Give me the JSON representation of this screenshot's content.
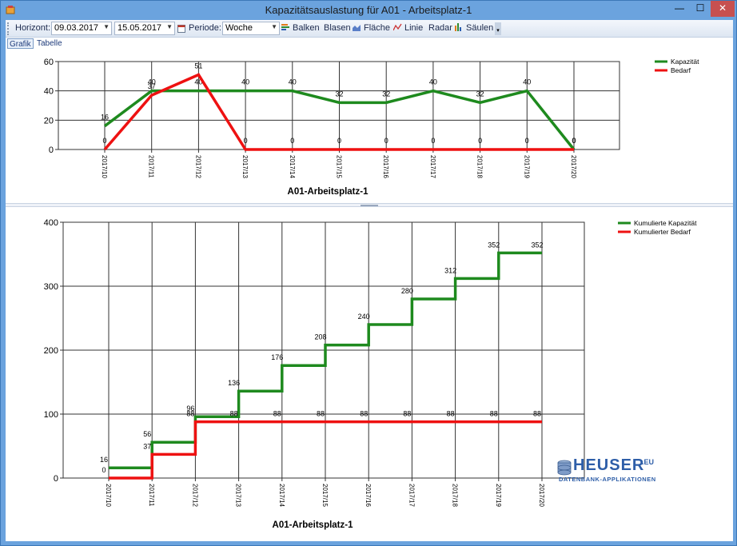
{
  "window": {
    "title": "Kapazitätsauslastung für A01 - Arbeitsplatz-1",
    "minimize": "—",
    "maximize": "☐",
    "close": "✕"
  },
  "toolbar": {
    "horizont_label": "Horizont:",
    "date_from": "09.03.2017",
    "date_to": "15.05.2017",
    "periode_label": "Periode:",
    "periode_value": "Woche",
    "buttons": [
      "Balken",
      "Blasen",
      "Fläche",
      "Linie",
      "Radar",
      "Säulen"
    ]
  },
  "tabs": [
    {
      "label": "Grafik",
      "active": true
    },
    {
      "label": "Tabelle",
      "active": false
    }
  ],
  "colors": {
    "kapazitaet": "#1e8a1e",
    "bedarf": "#ee1111"
  },
  "chart_data": [
    {
      "type": "line",
      "title": "A01-Arbeitsplatz-1",
      "categories": [
        "2017/10",
        "2017/11",
        "2017/12",
        "2017/13",
        "2017/14",
        "2017/15",
        "2017/16",
        "2017/17",
        "2017/18",
        "2017/19",
        "2017/20"
      ],
      "ylim": [
        0,
        60
      ],
      "yticks": [
        0,
        20,
        40,
        60
      ],
      "grid": true,
      "legend_position": "top-right",
      "series": [
        {
          "name": "Kapazität",
          "values": [
            16,
            40,
            40,
            40,
            40,
            32,
            32,
            40,
            32,
            40,
            0
          ]
        },
        {
          "name": "Bedarf",
          "values": [
            0,
            37,
            51,
            0,
            0,
            0,
            0,
            0,
            0,
            0,
            0
          ]
        }
      ]
    },
    {
      "type": "line",
      "step": true,
      "title": "A01-Arbeitsplatz-1",
      "categories": [
        "2017/10",
        "2017/11",
        "2017/12",
        "2017/13",
        "2017/14",
        "2017/15",
        "2017/16",
        "2017/17",
        "2017/18",
        "2017/19",
        "2017/20"
      ],
      "ylim": [
        0,
        400
      ],
      "yticks": [
        0,
        100,
        200,
        300,
        400
      ],
      "grid": true,
      "legend_position": "top-right",
      "series": [
        {
          "name": "Kumulierte Kapazität",
          "values": [
            16,
            56,
            96,
            136,
            176,
            208,
            240,
            280,
            312,
            352,
            352
          ]
        },
        {
          "name": "Kumulierter Bedarf",
          "values": [
            0,
            37,
            88,
            88,
            88,
            88,
            88,
            88,
            88,
            88,
            88
          ]
        }
      ]
    }
  ],
  "logo": {
    "name": "HEUSER",
    "suffix": ".EU",
    "tagline": "DATENBANK-APPLIKATIONEN"
  }
}
